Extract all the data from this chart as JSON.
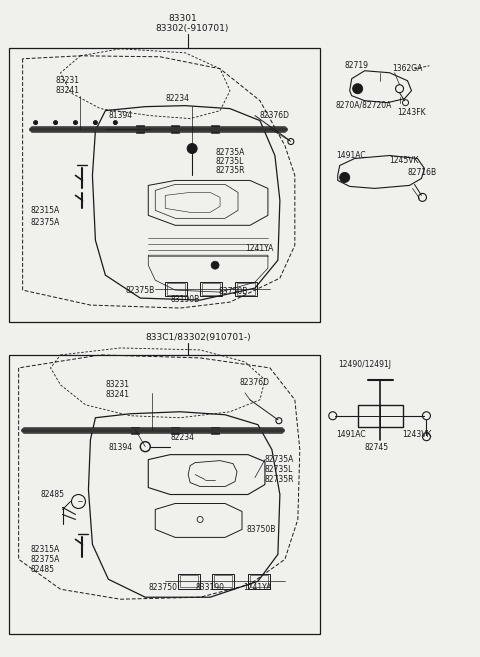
{
  "bg_color": "#f0f0ec",
  "white": "#ffffff",
  "black": "#1a1a1a",
  "fig_width": 4.8,
  "fig_height": 6.57,
  "dpi": 100,
  "title1": "83301",
  "title2": "83302(-910701)",
  "title3": "833C1/83302(910701-)"
}
